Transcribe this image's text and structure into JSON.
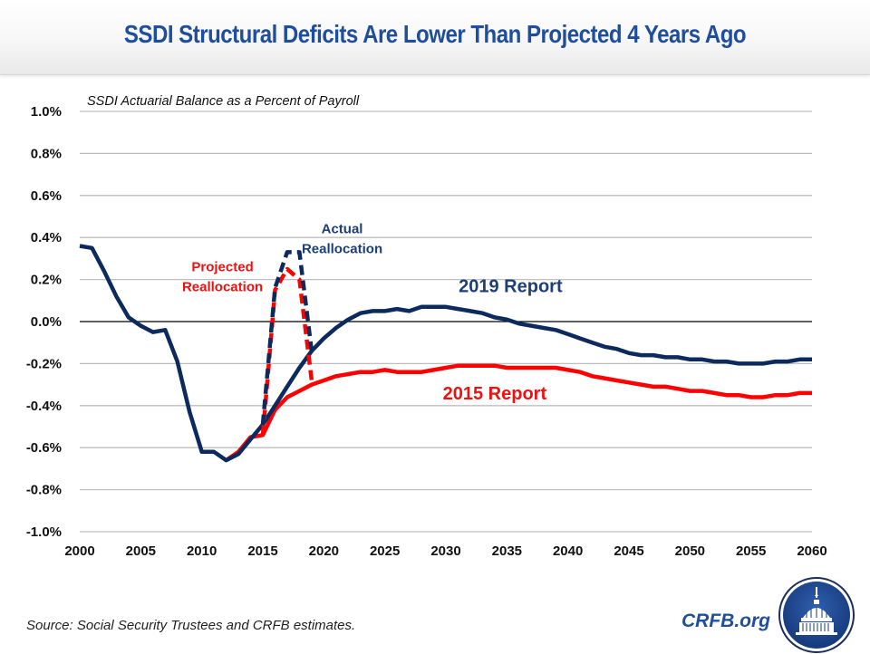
{
  "header": {
    "title": "SSDI Structural Deficits Are Lower Than Projected 4 Years Ago"
  },
  "footer": {
    "source": "Source: Social Security Trustees and CRFB estimates.",
    "brand": "CRFB.org",
    "logo_icon": "capitol-dome-icon"
  },
  "colors": {
    "report_2019": "#0c2a5e",
    "report_2015": "#ff0000",
    "title": "#1f4e9c",
    "gridline": "#bfbfbf",
    "zero_line": "#000000"
  },
  "chart_data": {
    "type": "line",
    "title": "SSDI Structural Deficits Are Lower Than Projected 4 Years Ago",
    "subtitle": "SSDI Actuarial Balance as a Percent of Payroll",
    "xlabel": "",
    "ylabel": "",
    "xlim": [
      2000,
      2060
    ],
    "ylim": [
      -1.0,
      1.0
    ],
    "x_ticks": [
      "2000",
      "2005",
      "2010",
      "2015",
      "2020",
      "2025",
      "2030",
      "2035",
      "2040",
      "2045",
      "2050",
      "2055",
      "2060"
    ],
    "x_tick_values": [
      2000,
      2005,
      2010,
      2015,
      2020,
      2025,
      2030,
      2035,
      2040,
      2045,
      2050,
      2055,
      2060
    ],
    "y_ticks": [
      "1.0%",
      "0.8%",
      "0.6%",
      "0.4%",
      "0.2%",
      "0.0%",
      "-0.2%",
      "-0.4%",
      "-0.6%",
      "-0.8%",
      "-1.0%"
    ],
    "y_tick_values": [
      1.0,
      0.8,
      0.6,
      0.4,
      0.2,
      0.0,
      -0.2,
      -0.4,
      -0.6,
      -0.8,
      -1.0
    ],
    "grid": true,
    "series": [
      {
        "name": "2019 Report",
        "style": "solid",
        "color": "#0c2a5e",
        "x": [
          2000,
          2001,
          2002,
          2003,
          2004,
          2005,
          2006,
          2007,
          2008,
          2009,
          2010,
          2011,
          2012,
          2013,
          2014,
          2015,
          2016,
          2017,
          2018,
          2019,
          2020,
          2021,
          2022,
          2023,
          2024,
          2025,
          2026,
          2027,
          2028,
          2029,
          2030,
          2031,
          2032,
          2033,
          2034,
          2035,
          2036,
          2037,
          2038,
          2039,
          2040,
          2041,
          2042,
          2043,
          2044,
          2045,
          2046,
          2047,
          2048,
          2049,
          2050,
          2051,
          2052,
          2053,
          2054,
          2055,
          2056,
          2057,
          2058,
          2059,
          2060
        ],
        "values": [
          0.36,
          0.35,
          0.24,
          0.12,
          0.02,
          -0.02,
          -0.05,
          -0.04,
          -0.19,
          -0.43,
          -0.62,
          -0.62,
          -0.66,
          -0.63,
          -0.56,
          -0.49,
          -0.4,
          -0.31,
          -0.22,
          -0.14,
          -0.08,
          -0.03,
          0.01,
          0.04,
          0.05,
          0.05,
          0.06,
          0.05,
          0.07,
          0.07,
          0.07,
          0.06,
          0.05,
          0.04,
          0.02,
          0.01,
          -0.01,
          -0.02,
          -0.03,
          -0.04,
          -0.06,
          -0.08,
          -0.1,
          -0.12,
          -0.13,
          -0.15,
          -0.16,
          -0.16,
          -0.17,
          -0.17,
          -0.18,
          -0.18,
          -0.19,
          -0.19,
          -0.2,
          -0.2,
          -0.2,
          -0.19,
          -0.19,
          -0.18,
          -0.18
        ]
      },
      {
        "name": "2015 Report",
        "style": "solid",
        "color": "#ff0000",
        "x": [
          2012,
          2013,
          2014,
          2015,
          2016,
          2017,
          2018,
          2019,
          2020,
          2021,
          2022,
          2023,
          2024,
          2025,
          2026,
          2027,
          2028,
          2029,
          2030,
          2031,
          2032,
          2033,
          2034,
          2035,
          2036,
          2037,
          2038,
          2039,
          2040,
          2041,
          2042,
          2043,
          2044,
          2045,
          2046,
          2047,
          2048,
          2049,
          2050,
          2051,
          2052,
          2053,
          2054,
          2055,
          2056,
          2057,
          2058,
          2059,
          2060
        ],
        "values": [
          -0.66,
          -0.62,
          -0.55,
          -0.54,
          -0.42,
          -0.36,
          -0.33,
          -0.3,
          -0.28,
          -0.26,
          -0.25,
          -0.24,
          -0.24,
          -0.23,
          -0.24,
          -0.24,
          -0.24,
          -0.23,
          -0.22,
          -0.21,
          -0.21,
          -0.21,
          -0.21,
          -0.22,
          -0.22,
          -0.22,
          -0.22,
          -0.22,
          -0.23,
          -0.24,
          -0.26,
          -0.27,
          -0.28,
          -0.29,
          -0.3,
          -0.31,
          -0.31,
          -0.32,
          -0.33,
          -0.33,
          -0.34,
          -0.35,
          -0.35,
          -0.36,
          -0.36,
          -0.35,
          -0.35,
          -0.34,
          -0.34
        ]
      },
      {
        "name": "Actual Reallocation",
        "style": "dashed",
        "color": "#0c2a5e",
        "x": [
          2015,
          2016,
          2017,
          2018,
          2019
        ],
        "values": [
          -0.49,
          0.16,
          0.33,
          0.33,
          -0.14
        ]
      },
      {
        "name": "Projected Reallocation",
        "style": "dashed",
        "color": "#ff0000",
        "x": [
          2015,
          2016,
          2017,
          2018,
          2019
        ],
        "values": [
          -0.54,
          0.15,
          0.25,
          0.2,
          -0.28
        ]
      }
    ],
    "annotations": [
      {
        "text_lines": [
          "Actual",
          "Reallocation"
        ],
        "color": "#1c3f7a",
        "x": 2021.5,
        "y": 0.42
      },
      {
        "text_lines": [
          "Projected",
          "Reallocation"
        ],
        "color": "#ee1111",
        "x": 2011.7,
        "y": 0.24
      },
      {
        "text": "2019 Report",
        "color": "#1c3f7a",
        "x": 2035.3,
        "y": 0.14
      },
      {
        "text": "2015 Report",
        "color": "#ee1111",
        "x": 2034.0,
        "y": -0.37
      }
    ]
  }
}
